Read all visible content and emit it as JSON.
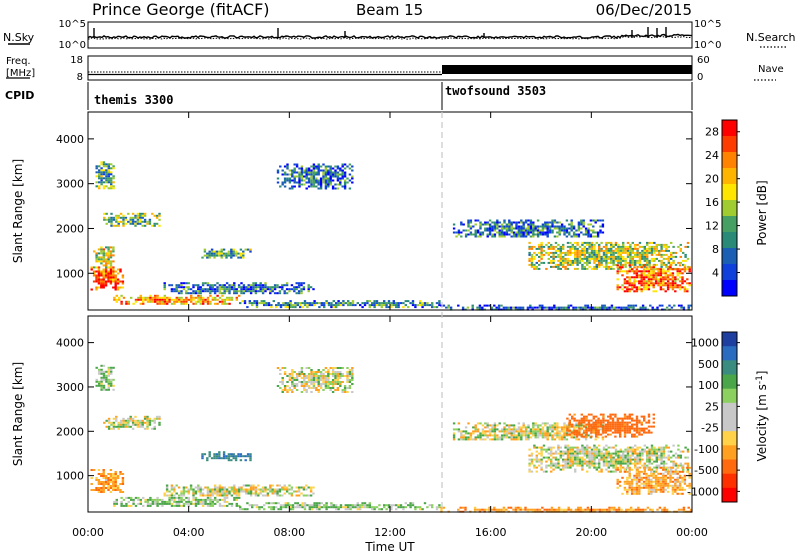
{
  "header": {
    "station": "Prince George (fitACF)",
    "beam": "Beam 15",
    "date": "06/Dec/2015"
  },
  "top_panels": {
    "nsky_label": "N.Sky",
    "nsky_ticks": [
      "10^5",
      "10^0"
    ],
    "nsearch_label": "N.Search",
    "nsearch_ticks": [
      "10^5",
      "10^0"
    ],
    "freq_label_line1": "Freq.",
    "freq_label_line2": "[MHz]",
    "freq_ticks": [
      "18",
      "8"
    ],
    "nave_label": "Nave",
    "nave_ticks": [
      "60",
      "0"
    ],
    "cpid_label": "CPID",
    "cpid_segments": [
      {
        "name": "themis 3300",
        "start_hour": 0,
        "end_hour": 14
      },
      {
        "name": "twofsound 3503",
        "start_hour": 14,
        "end_hour": 24
      }
    ]
  },
  "x_axis": {
    "label": "Time UT",
    "ticks": [
      "00:00",
      "04:00",
      "08:00",
      "12:00",
      "16:00",
      "20:00",
      "00:00"
    ],
    "range_hours": [
      0,
      24
    ],
    "mode_change_hour": 14
  },
  "chart_data": [
    {
      "type": "heatmap",
      "parameter": "Power",
      "ylabel": "Slant Range [km]",
      "ylim": [
        180,
        4600
      ],
      "yticks": [
        "1000",
        "2000",
        "3000",
        "4000"
      ],
      "colorbar_label": "Power [dB]",
      "colorbar_ticks": [
        "28",
        "24",
        "20",
        "16",
        "12",
        "8",
        "4"
      ],
      "colorbar_colors": [
        "#ff0000",
        "#ff3c00",
        "#ff8200",
        "#ffb400",
        "#ffe600",
        "#a0cc32",
        "#46a064",
        "#2a8a78",
        "#1a5fb4",
        "#1040dc",
        "#0000ff"
      ],
      "colorbar_range": [
        0,
        30
      ],
      "echo_regions": [
        {
          "t0": 0.1,
          "t1": 1.4,
          "r0": 650,
          "r1": 1150,
          "value": 26
        },
        {
          "t0": 0.2,
          "t1": 1.0,
          "r0": 1150,
          "r1": 1600,
          "value": 18
        },
        {
          "t0": 0.3,
          "t1": 1.0,
          "r0": 2900,
          "r1": 3500,
          "value": 12
        },
        {
          "t0": 0.6,
          "t1": 2.8,
          "r0": 2050,
          "r1": 2350,
          "value": 14
        },
        {
          "t0": 1.0,
          "t1": 6.0,
          "r0": 320,
          "r1": 520,
          "value": 22
        },
        {
          "t0": 4.5,
          "t1": 6.5,
          "r0": 1350,
          "r1": 1550,
          "value": 12
        },
        {
          "t0": 3.0,
          "t1": 9.0,
          "r0": 550,
          "r1": 800,
          "value": 8
        },
        {
          "t0": 7.5,
          "t1": 10.5,
          "r0": 2900,
          "r1": 3450,
          "value": 7
        },
        {
          "t0": 6.0,
          "t1": 14.0,
          "r0": 250,
          "r1": 400,
          "value": 10
        },
        {
          "t0": 14.5,
          "t1": 20.5,
          "r0": 1800,
          "r1": 2200,
          "value": 8
        },
        {
          "t0": 17.5,
          "t1": 23.8,
          "r0": 1100,
          "r1": 1700,
          "value": 16
        },
        {
          "t0": 21.0,
          "t1": 23.9,
          "r0": 600,
          "r1": 1200,
          "value": 24
        },
        {
          "t0": 14.0,
          "t1": 24.0,
          "r0": 180,
          "r1": 300,
          "value": 6
        }
      ]
    },
    {
      "type": "heatmap",
      "parameter": "Velocity",
      "ylabel": "Slant Range [km]",
      "ylim": [
        180,
        4600
      ],
      "yticks": [
        "1000",
        "2000",
        "3000",
        "4000"
      ],
      "colorbar_label": "Velocity [m s",
      "colorbar_label_sup": "-1",
      "colorbar_label_end": "]",
      "colorbar_ticks": [
        "1000",
        "500",
        "100",
        "25",
        "-25",
        "-100",
        "-500",
        "-1000"
      ],
      "colorbar_colors": [
        "#1f3fa0",
        "#2a6cc0",
        "#3a8c80",
        "#4ba64a",
        "#8cd060",
        "#c8c8c8",
        "#c8c8c8",
        "#ffd24a",
        "#ffa020",
        "#ff6a10",
        "#ff3000",
        "#ff0000"
      ],
      "colorbar_range": [
        -1000,
        1000
      ],
      "echo_regions": [
        {
          "t0": 0.1,
          "t1": 1.4,
          "r0": 650,
          "r1": 1150,
          "value": -150
        },
        {
          "t0": 0.3,
          "t1": 1.0,
          "r0": 2900,
          "r1": 3500,
          "value": 80
        },
        {
          "t0": 0.6,
          "t1": 2.8,
          "r0": 2050,
          "r1": 2350,
          "value": 0
        },
        {
          "t0": 1.0,
          "t1": 6.0,
          "r0": 320,
          "r1": 520,
          "value": 60
        },
        {
          "t0": 4.5,
          "t1": 6.5,
          "r0": 1350,
          "r1": 1550,
          "value": 400
        },
        {
          "t0": 3.0,
          "t1": 9.0,
          "r0": 550,
          "r1": 800,
          "value": 0
        },
        {
          "t0": 7.5,
          "t1": 10.5,
          "r0": 2900,
          "r1": 3450,
          "value": 0
        },
        {
          "t0": 6.0,
          "t1": 14.0,
          "r0": 250,
          "r1": 400,
          "value": 70
        },
        {
          "t0": 14.5,
          "t1": 20.5,
          "r0": 1800,
          "r1": 2200,
          "value": 0
        },
        {
          "t0": 17.5,
          "t1": 23.8,
          "r0": 1100,
          "r1": 1700,
          "value": 0
        },
        {
          "t0": 19.0,
          "t1": 22.5,
          "r0": 1900,
          "r1": 2400,
          "value": -300
        },
        {
          "t0": 21.0,
          "t1": 23.9,
          "r0": 600,
          "r1": 1200,
          "value": -120
        },
        {
          "t0": 14.0,
          "t1": 24.0,
          "r0": 180,
          "r1": 300,
          "value": -150
        }
      ]
    }
  ]
}
